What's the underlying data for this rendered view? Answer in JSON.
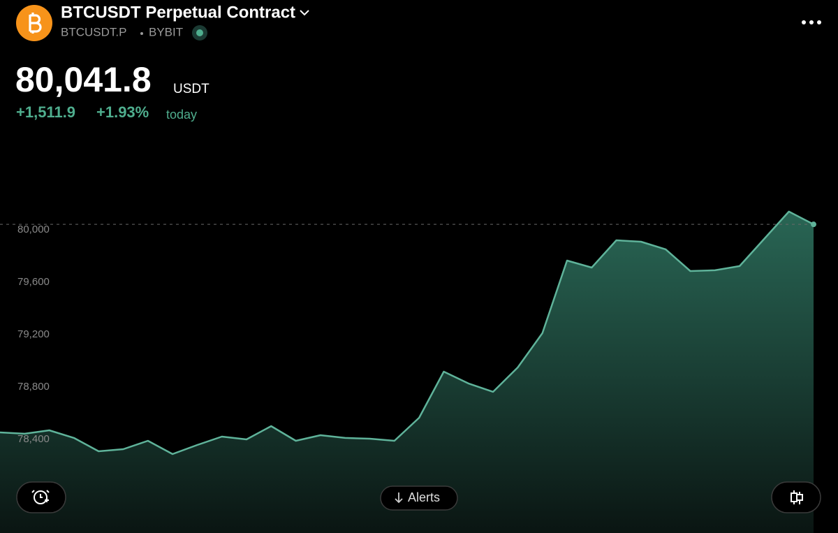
{
  "header": {
    "title": "BTCUSDT Perpetual Contract",
    "symbol": "BTCUSDT.P",
    "exchange": "BYBIT",
    "price": "80,041.8",
    "currency": "USDT",
    "change": "+1,511.9",
    "change_percent": "+1.93%",
    "period": "today"
  },
  "chart_data": {
    "type": "area",
    "color": "#5fb39a",
    "values": [
      78453,
      78443,
      78469,
      78411,
      78309,
      78325,
      78389,
      78288,
      78357,
      78421,
      78400,
      78501,
      78389,
      78432,
      78411,
      78405,
      78389,
      78565,
      78917,
      78827,
      78763,
      78949,
      79211,
      79765,
      79712,
      79920,
      79909,
      79851,
      79685,
      79691,
      79723,
      79931,
      80139,
      80041.8
    ],
    "ylim": [
      77685,
      80688
    ],
    "yticks": [
      {
        "value": 78400,
        "label": "78,400"
      },
      {
        "value": 78800,
        "label": "78,800"
      },
      {
        "value": 79200,
        "label": "79,200"
      },
      {
        "value": 79600,
        "label": "79,600"
      },
      {
        "value": 80000,
        "label": "80,000"
      }
    ]
  },
  "buttons": {
    "alerts": "Alerts"
  }
}
